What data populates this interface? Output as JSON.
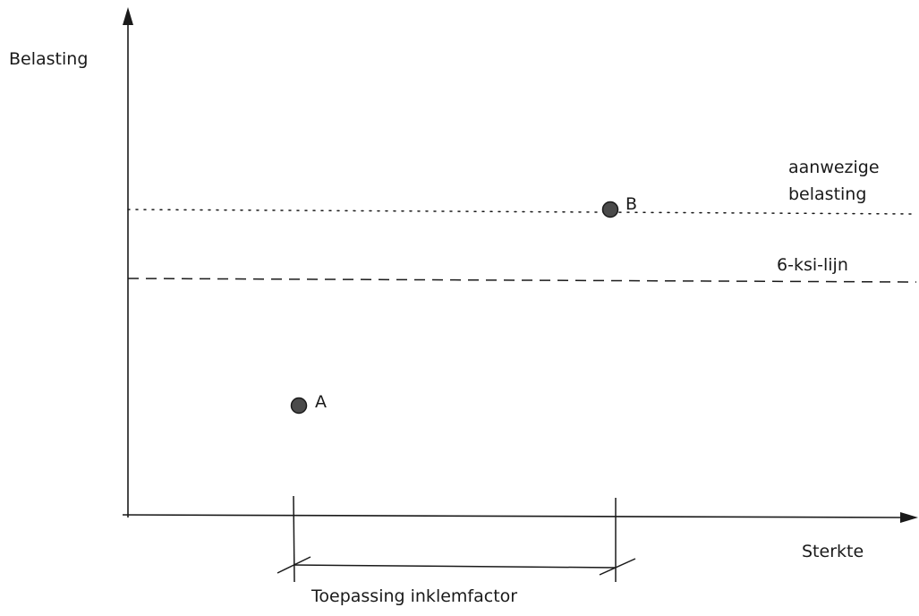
{
  "diagram": {
    "y_axis_label": "Belasting",
    "x_axis_label": "Sterkte",
    "present_load_line_label": [
      "aanwezige",
      "belasting"
    ],
    "six_ksi_line_label": "6-ksi-lijn",
    "point_a_label": "A",
    "point_b_label": "B",
    "range_label": "Toepassing inklemfactor"
  },
  "colors": {
    "ink": "#1a1a1a",
    "point_fill": "#4a4a4a"
  }
}
